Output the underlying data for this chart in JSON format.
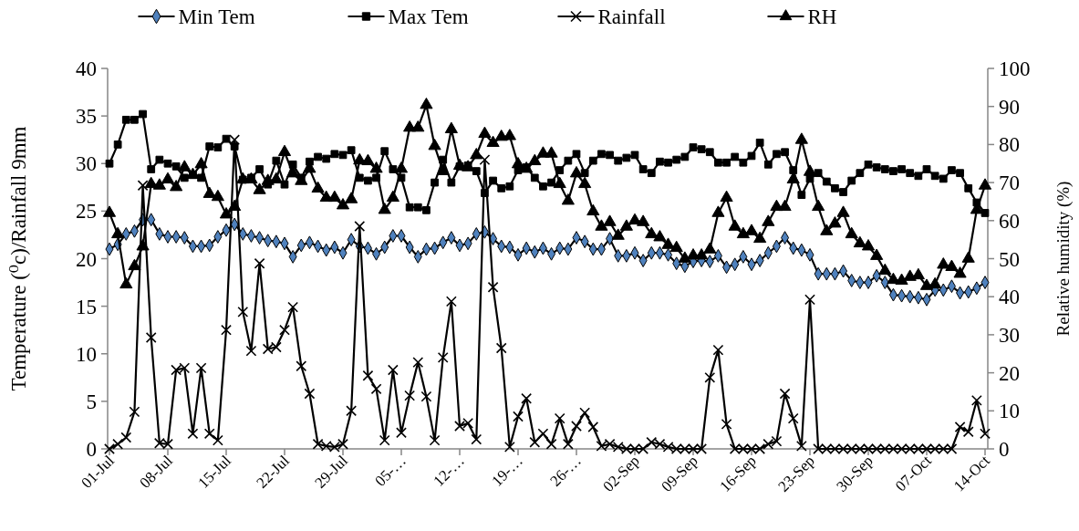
{
  "chart_data": {
    "type": "line",
    "ylabel": "Temperature (⁰c)/Rainfall 9mm",
    "y2label": "Relative humidity (%)",
    "categories": [
      "01-Jul",
      null,
      null,
      null,
      null,
      null,
      null,
      "08-Jul",
      null,
      null,
      null,
      null,
      null,
      null,
      "15-Jul",
      null,
      null,
      null,
      null,
      null,
      null,
      "22-Jul",
      null,
      null,
      null,
      null,
      null,
      null,
      "29-Jul",
      null,
      null,
      null,
      null,
      null,
      null,
      "05-…",
      null,
      null,
      null,
      null,
      null,
      null,
      "12-…",
      null,
      null,
      null,
      null,
      null,
      null,
      "19-…",
      null,
      null,
      null,
      null,
      null,
      null,
      "26-…",
      null,
      null,
      null,
      null,
      null,
      null,
      "02-Sep",
      null,
      null,
      null,
      null,
      null,
      null,
      "09-Sep",
      null,
      null,
      null,
      null,
      null,
      null,
      "16-Sep",
      null,
      null,
      null,
      null,
      null,
      null,
      "23-Sep",
      null,
      null,
      null,
      null,
      null,
      null,
      "30-Sep",
      null,
      null,
      null,
      null,
      null,
      null,
      "07-Oct",
      null,
      null,
      null,
      null,
      null,
      null,
      "14-Oct"
    ],
    "series": [
      {
        "name": "Min Tem",
        "color": "#4f81bd",
        "marker": "diamond",
        "values": [
          21.0,
          21.5,
          22.6,
          22.9,
          24.1,
          24.1,
          22.6,
          22.3,
          22.3,
          22.2,
          21.3,
          21.3,
          21.4,
          22.3,
          23.0,
          23.6,
          22.6,
          22.4,
          22.2,
          21.9,
          21.8,
          21.6,
          20.2,
          21.4,
          21.7,
          21.3,
          20.9,
          21.2,
          20.6,
          22.0,
          21.3,
          21.1,
          20.5,
          21.2,
          22.4,
          22.4,
          21.2,
          20.2,
          21.0,
          21.1,
          21.7,
          22.2,
          21.4,
          21.6,
          22.6,
          22.8,
          22.1,
          21.3,
          21.2,
          20.4,
          21.1,
          20.7,
          21.1,
          20.5,
          21.1,
          21.0,
          22.2,
          21.8,
          21.0,
          21.0,
          22.1,
          20.3,
          20.3,
          20.6,
          19.8,
          20.6,
          20.6,
          20.4,
          19.5,
          19.2,
          19.7,
          19.8,
          19.7,
          20.3,
          19.1,
          19.4,
          20.2,
          19.4,
          19.8,
          20.6,
          21.3,
          22.2,
          21.1,
          20.9,
          20.4,
          18.4,
          18.4,
          18.4,
          18.7,
          17.7,
          17.5,
          17.5,
          18.2,
          17.5,
          16.2,
          16.1,
          16.0,
          15.9,
          15.7,
          16.7,
          16.7,
          17.1,
          16.4,
          16.5,
          16.9,
          17.5
        ]
      },
      {
        "name": "Max Tem",
        "color": "#000000",
        "marker": "square",
        "values": [
          30.0,
          32.0,
          34.6,
          34.6,
          35.2,
          29.4,
          30.4,
          30.0,
          29.7,
          28.5,
          28.8,
          28.5,
          31.8,
          31.7,
          32.6,
          31.8,
          28.3,
          28.5,
          29.4,
          27.8,
          30.3,
          27.8,
          29.9,
          28.5,
          30.2,
          30.7,
          30.5,
          31.0,
          30.9,
          31.4,
          28.5,
          28.2,
          28.5,
          31.3,
          29.4,
          28.5,
          25.4,
          25.4,
          25.1,
          28.0,
          30.4,
          28.0,
          29.7,
          29.8,
          29.2,
          26.9,
          28.2,
          27.4,
          27.6,
          29.3,
          29.6,
          28.5,
          27.6,
          28.0,
          29.3,
          30.3,
          31.0,
          29.0,
          30.3,
          31.0,
          30.9,
          30.3,
          30.6,
          30.9,
          29.4,
          29.0,
          30.2,
          30.1,
          30.4,
          30.7,
          31.7,
          31.5,
          31.2,
          30.1,
          30.1,
          30.7,
          30.1,
          30.8,
          32.2,
          29.9,
          31.0,
          31.2,
          29.3,
          26.7,
          28.4,
          29.0,
          28.1,
          27.4,
          27.0,
          28.2,
          29.0,
          29.9,
          29.6,
          29.4,
          29.2,
          29.4,
          29.0,
          28.7,
          29.4,
          28.7,
          28.4,
          29.3,
          29.0,
          27.4,
          25.9,
          24.8
        ]
      },
      {
        "name": "Rainfall",
        "color": "#000000",
        "marker": "cross",
        "values": [
          0,
          0.5,
          1.2,
          3.9,
          27.7,
          11.7,
          0.6,
          0.5,
          8.3,
          8.5,
          1.6,
          8.5,
          1.6,
          0.9,
          12.5,
          32.5,
          14.4,
          10.3,
          19.5,
          10.5,
          10.7,
          12.5,
          14.9,
          8.7,
          5.8,
          0.5,
          0.3,
          0.2,
          0.5,
          4.0,
          23.4,
          7.7,
          6.3,
          0.9,
          8.3,
          1.7,
          5.6,
          9.1,
          5.5,
          0.9,
          9.6,
          15.5,
          2.4,
          2.7,
          1.0,
          30.4,
          17.0,
          10.6,
          0.2,
          3.4,
          5.3,
          0.7,
          1.6,
          0.5,
          3.2,
          0.5,
          2.4,
          3.8,
          2.3,
          0.3,
          0.5,
          0.2,
          0,
          0,
          0,
          0.7,
          0.5,
          0.2,
          0,
          0,
          0,
          0,
          7.5,
          10.4,
          2.6,
          0,
          0,
          0,
          0,
          0.5,
          0.8,
          5.8,
          3.2,
          0.3,
          15.7,
          0,
          0,
          0,
          0,
          0,
          0,
          0,
          0,
          0,
          0,
          0,
          0,
          0,
          0,
          0,
          0,
          0,
          2.3,
          1.8,
          5.1,
          1.6
        ]
      },
      {
        "name": "RH",
        "color": "#000000",
        "marker": "triangle",
        "axis": "y2",
        "values": [
          62.0,
          56.4,
          43.2,
          48.0,
          53.2,
          69.6,
          69.2,
          70.8,
          68.8,
          74.0,
          72.0,
          74.8,
          67.0,
          66.2,
          61.6,
          63.6,
          70.8,
          70.8,
          68.0,
          70.4,
          70.8,
          78.0,
          72.4,
          70.4,
          73.6,
          68.4,
          66.0,
          66.0,
          64.0,
          65.6,
          75.8,
          75.6,
          73.6,
          62.8,
          66.0,
          73.6,
          84.4,
          84.4,
          90.4,
          79.6,
          73.0,
          84.0,
          74.4,
          74.0,
          77.2,
          82.8,
          80.4,
          82.0,
          82.2,
          74.8,
          73.6,
          75.6,
          77.6,
          77.6,
          69.6,
          65.2,
          72.4,
          69.6,
          62.4,
          58.4,
          59.6,
          56.0,
          58.4,
          60.0,
          59.6,
          56.4,
          55.6,
          53.6,
          52.8,
          50.0,
          50.8,
          50.8,
          52.4,
          62.0,
          66.0,
          58.4,
          56.4,
          57.2,
          55.2,
          59.6,
          63.6,
          63.6,
          70.8,
          81.2,
          72.8,
          63.6,
          57.2,
          59.2,
          62.0,
          56.4,
          54.0,
          53.2,
          50.7,
          46.8,
          44.4,
          44.2,
          45.2,
          45.6,
          42.8,
          43.2,
          48.4,
          47.8,
          46.0,
          50.0,
          62.8,
          69.2
        ]
      }
    ],
    "ylim": [
      0,
      40
    ],
    "yticks": [
      0,
      5,
      10,
      15,
      20,
      25,
      30,
      35,
      40
    ],
    "y2lim": [
      0,
      100
    ],
    "y2ticks": [
      0,
      10,
      20,
      30,
      40,
      50,
      60,
      70,
      80,
      90,
      100
    ],
    "legend": "top",
    "grid": false,
    "line_style": "solid"
  }
}
